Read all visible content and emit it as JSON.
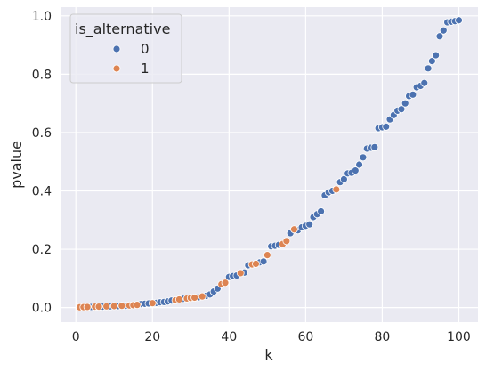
{
  "chart_data": {
    "type": "scatter",
    "xlabel": "k",
    "ylabel": "pvalue",
    "xlim": [
      -4,
      105
    ],
    "ylim": [
      -0.05,
      1.03
    ],
    "xticks": [
      0,
      20,
      40,
      60,
      80,
      100
    ],
    "xtick_labels": [
      "0",
      "20",
      "40",
      "60",
      "80",
      "100"
    ],
    "yticks": [
      0.0,
      0.2,
      0.4,
      0.6,
      0.8,
      1.0
    ],
    "ytick_labels": [
      "0.0",
      "0.2",
      "0.4",
      "0.6",
      "0.8",
      "1.0"
    ],
    "grid": true,
    "legend": {
      "title": "is_alternative",
      "placement": "top-left",
      "entries": [
        {
          "label": "0",
          "color": "#4c72b0"
        },
        {
          "label": "1",
          "color": "#dd8452"
        }
      ]
    },
    "series": [
      {
        "name": "0",
        "color": "#4c72b0",
        "x": [
          4,
          7,
          9,
          11,
          13,
          17,
          18,
          19,
          21,
          22,
          23,
          24,
          25,
          28,
          32,
          34,
          35,
          36,
          37,
          40,
          41,
          42,
          44,
          45,
          48,
          49,
          51,
          52,
          53,
          56,
          58,
          59,
          60,
          61,
          62,
          63,
          64,
          65,
          66,
          67,
          69,
          70,
          71,
          72,
          73,
          74,
          75,
          76,
          77,
          78,
          79,
          80,
          81,
          82,
          83,
          84,
          85,
          86,
          87,
          88,
          89,
          90,
          91,
          92,
          93,
          94,
          95,
          96,
          97,
          98,
          99,
          100
        ],
        "y": [
          0.002,
          0.003,
          0.004,
          0.005,
          0.006,
          0.012,
          0.013,
          0.014,
          0.016,
          0.018,
          0.019,
          0.021,
          0.024,
          0.03,
          0.035,
          0.04,
          0.045,
          0.055,
          0.065,
          0.105,
          0.108,
          0.11,
          0.12,
          0.145,
          0.155,
          0.158,
          0.21,
          0.212,
          0.215,
          0.255,
          0.265,
          0.275,
          0.28,
          0.285,
          0.31,
          0.32,
          0.33,
          0.385,
          0.395,
          0.4,
          0.43,
          0.44,
          0.46,
          0.462,
          0.47,
          0.49,
          0.515,
          0.545,
          0.548,
          0.55,
          0.615,
          0.618,
          0.62,
          0.645,
          0.66,
          0.675,
          0.68,
          0.7,
          0.725,
          0.73,
          0.755,
          0.76,
          0.77,
          0.82,
          0.845,
          0.865,
          0.93,
          0.95,
          0.978,
          0.98,
          0.982,
          0.985
        ]
      },
      {
        "name": "1",
        "color": "#dd8452",
        "x": [
          1,
          2,
          3,
          5,
          6,
          8,
          10,
          12,
          14,
          15,
          16,
          20,
          26,
          27,
          29,
          30,
          31,
          33,
          38,
          39,
          43,
          46,
          47,
          50,
          54,
          55,
          57,
          68
        ],
        "y": [
          0.001,
          0.0015,
          0.002,
          0.003,
          0.003,
          0.004,
          0.005,
          0.006,
          0.007,
          0.008,
          0.009,
          0.015,
          0.025,
          0.028,
          0.031,
          0.033,
          0.034,
          0.038,
          0.08,
          0.085,
          0.118,
          0.148,
          0.15,
          0.18,
          0.218,
          0.228,
          0.268,
          0.405
        ]
      }
    ]
  }
}
